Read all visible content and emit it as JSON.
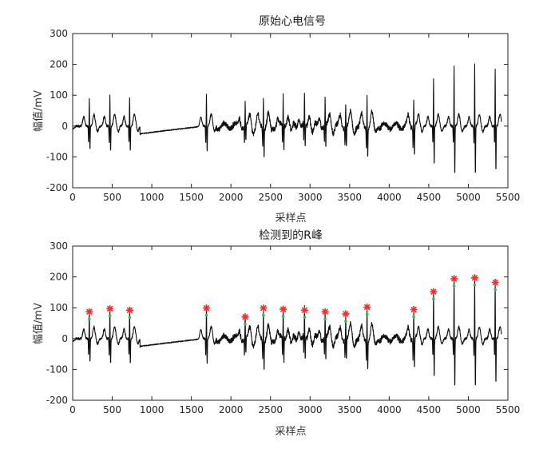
{
  "chart_data": [
    {
      "type": "line",
      "title": "原始心电信号",
      "xlabel": "采样点",
      "ylabel": "幅值/mV",
      "xlim": [
        0,
        5500
      ],
      "ylim": [
        -200,
        300
      ],
      "xticks": [
        0,
        500,
        1000,
        1500,
        2000,
        2500,
        3000,
        3500,
        4000,
        4500,
        5000,
        5500
      ],
      "yticks": [
        -200,
        -100,
        0,
        100,
        200,
        300
      ],
      "series": [
        {
          "name": "ECG",
          "description": "raw ECG with QRS complexes and a flat segment near 850-1650",
          "r_peaks": [
            {
              "x": 210,
              "y": 85
            },
            {
              "x": 470,
              "y": 95
            },
            {
              "x": 720,
              "y": 90
            },
            {
              "x": 1690,
              "y": 97
            },
            {
              "x": 2180,
              "y": 68
            },
            {
              "x": 2410,
              "y": 97
            },
            {
              "x": 2660,
              "y": 93
            },
            {
              "x": 2930,
              "y": 90
            },
            {
              "x": 3190,
              "y": 85
            },
            {
              "x": 3450,
              "y": 78
            },
            {
              "x": 3720,
              "y": 100
            },
            {
              "x": 4310,
              "y": 92
            },
            {
              "x": 4560,
              "y": 150
            },
            {
              "x": 4820,
              "y": 192
            },
            {
              "x": 5080,
              "y": 195
            },
            {
              "x": 5340,
              "y": 180
            }
          ],
          "baseline_segment": {
            "x_start": 850,
            "y_start": -25,
            "x_end": 1650,
            "y_end": 0
          }
        }
      ]
    },
    {
      "type": "line",
      "title": "检测到的R峰",
      "xlabel": "采样点",
      "ylabel": "幅值/mV",
      "xlim": [
        0,
        5500
      ],
      "ylim": [
        -200,
        300
      ],
      "xticks": [
        0,
        500,
        1000,
        1500,
        2000,
        2500,
        3000,
        3500,
        4000,
        4500,
        5000,
        5500
      ],
      "yticks": [
        -200,
        -100,
        0,
        100,
        200,
        300
      ],
      "markers": {
        "symbol": "*",
        "color": "#ff2a2a",
        "base_color": "#2ec24a"
      }
    }
  ]
}
